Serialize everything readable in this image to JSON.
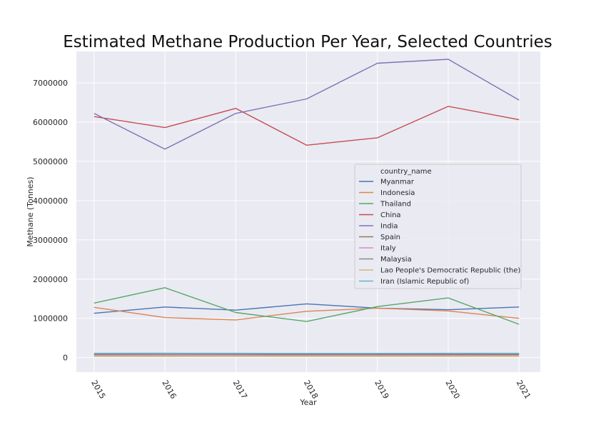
{
  "chart_data": {
    "type": "line",
    "title": "Estimated Methane Production Per Year, Selected Countries",
    "xlabel": "Year",
    "ylabel": "Methane (Tonnes)",
    "x": [
      2015,
      2016,
      2017,
      2018,
      2019,
      2020,
      2021
    ],
    "xlim": [
      2014.75,
      2021.3
    ],
    "ylim": [
      -370000,
      7800000
    ],
    "yticks": [
      0,
      1000000,
      2000000,
      3000000,
      4000000,
      5000000,
      6000000,
      7000000
    ],
    "grid": true,
    "legend": {
      "title": "country_name",
      "placement": "right"
    },
    "series": [
      {
        "name": "Myanmar",
        "color": "#4c72b0",
        "values": [
          1130000,
          1290000,
          1210000,
          1370000,
          1260000,
          1220000,
          1290000
        ]
      },
      {
        "name": "Indonesia",
        "color": "#dd8452",
        "values": [
          1280000,
          1020000,
          960000,
          1180000,
          1260000,
          1190000,
          1000000
        ]
      },
      {
        "name": "Thailand",
        "color": "#55a868",
        "values": [
          1390000,
          1780000,
          1150000,
          920000,
          1300000,
          1520000,
          850000
        ]
      },
      {
        "name": "China",
        "color": "#c44e52",
        "values": [
          6140000,
          5860000,
          6350000,
          5410000,
          5600000,
          6400000,
          6060000
        ]
      },
      {
        "name": "India",
        "color": "#8172b3",
        "values": [
          6220000,
          5310000,
          6220000,
          6590000,
          7500000,
          7600000,
          6560000
        ]
      },
      {
        "name": "Spain",
        "color": "#937860",
        "values": [
          80000,
          85000,
          82000,
          80000,
          78000,
          80000,
          78000
        ]
      },
      {
        "name": "Italy",
        "color": "#da8bc3",
        "values": [
          55000,
          56000,
          55000,
          54000,
          53000,
          54000,
          53000
        ]
      },
      {
        "name": "Malaysia",
        "color": "#8c8c8c",
        "values": [
          95000,
          97000,
          96000,
          98000,
          97000,
          98000,
          99000
        ]
      },
      {
        "name": "Lao People's Democratic Republic (the)",
        "color": "#ccb974",
        "values": [
          30000,
          31000,
          32000,
          32000,
          33000,
          33000,
          34000
        ]
      },
      {
        "name": "Iran (Islamic Republic of)",
        "color": "#64b5cd",
        "values": [
          110000,
          112000,
          110000,
          108000,
          109000,
          111000,
          110000
        ]
      }
    ]
  }
}
